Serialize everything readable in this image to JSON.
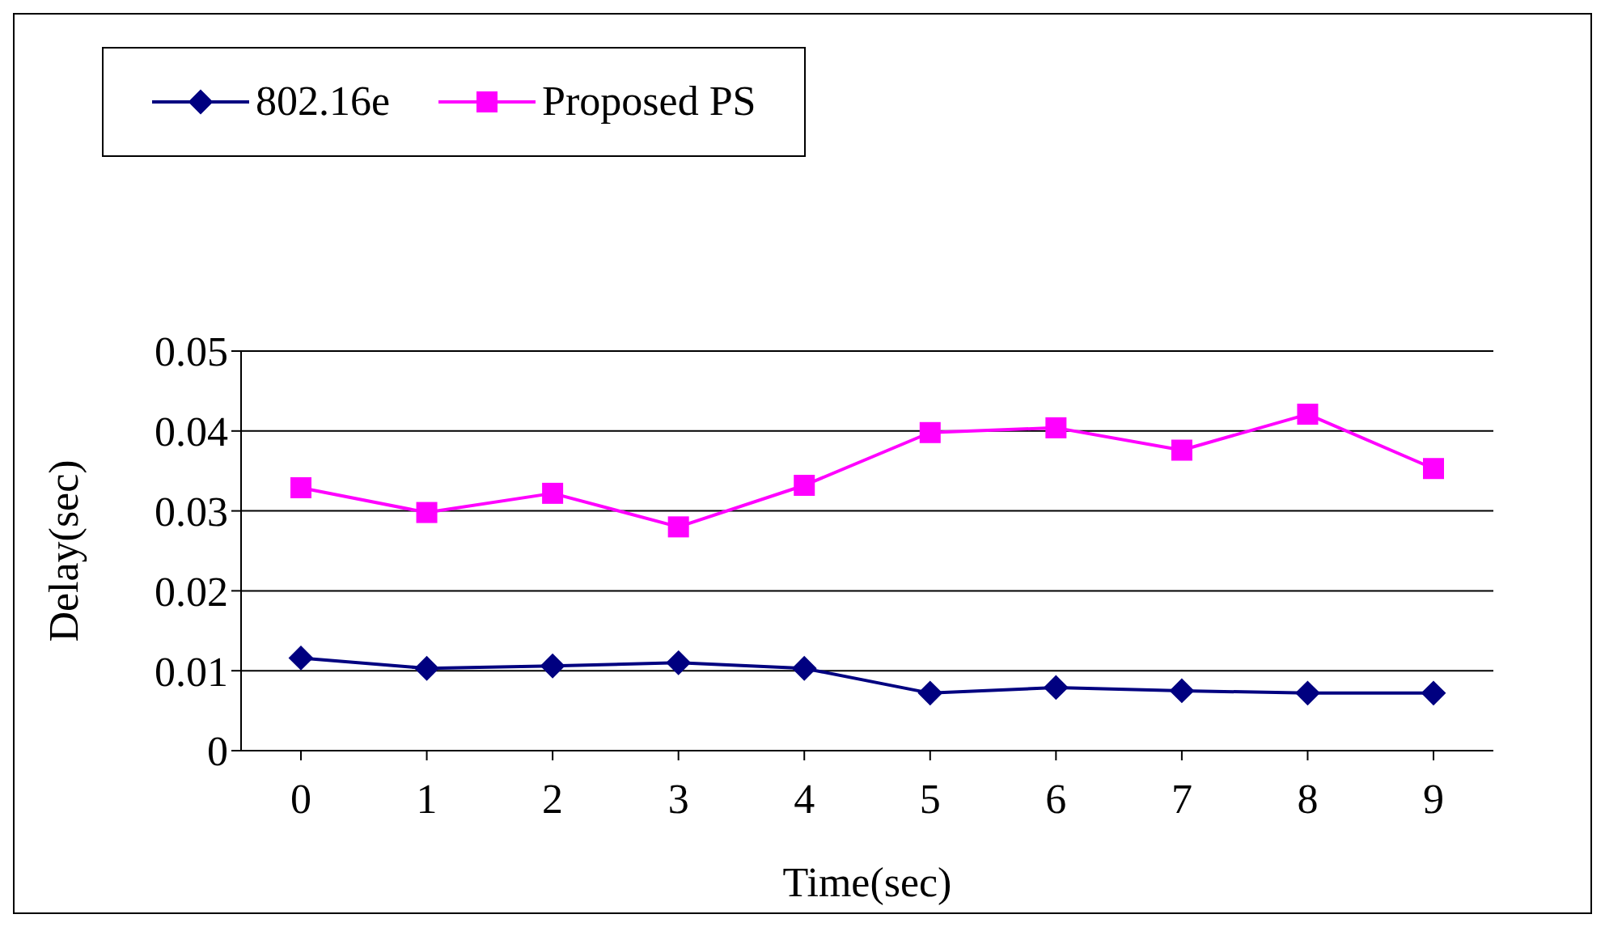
{
  "chart_data": {
    "type": "line",
    "xlabel": "Time(sec)",
    "ylabel": "Delay(sec)",
    "categories": [
      "0",
      "1",
      "2",
      "3",
      "4",
      "5",
      "6",
      "7",
      "8",
      "9"
    ],
    "series": [
      {
        "name": "802.16e",
        "color": "#000080",
        "marker": "diamond",
        "values": [
          0.0116,
          0.0103,
          0.0106,
          0.011,
          0.0103,
          0.0072,
          0.0079,
          0.0075,
          0.0072,
          0.0072
        ]
      },
      {
        "name": "Proposed PS",
        "color": "#ff00ff",
        "marker": "square",
        "values": [
          0.0329,
          0.0298,
          0.0322,
          0.028,
          0.0332,
          0.0398,
          0.0404,
          0.0376,
          0.0421,
          0.0353
        ]
      }
    ],
    "ylim": [
      0,
      0.05
    ],
    "yticks": [
      0,
      0.01,
      0.02,
      0.03,
      0.04,
      0.05
    ],
    "grid": "y",
    "legend": "top left"
  }
}
